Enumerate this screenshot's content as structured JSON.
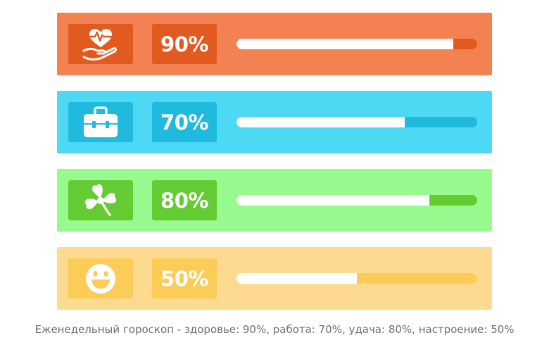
{
  "colors": {
    "health_bg": "#f48152",
    "health_accent": "#e25a20",
    "work_bg": "#4dd8f4",
    "work_accent": "#1fbade",
    "luck_bg": "#96fa8e",
    "luck_accent": "#64cc32",
    "mood_bg": "#feda90",
    "mood_accent": "#fbcc58",
    "bar_fill": "#ffffff",
    "caption_text": "#6f6f6f"
  },
  "cards": [
    {
      "key": "health",
      "icon": "heart-hand-icon",
      "percent_label": "90%",
      "value": 90
    },
    {
      "key": "work",
      "icon": "briefcase-icon",
      "percent_label": "70%",
      "value": 70
    },
    {
      "key": "luck",
      "icon": "clover-icon",
      "percent_label": "80%",
      "value": 80
    },
    {
      "key": "mood",
      "icon": "smiley-icon",
      "percent_label": "50%",
      "value": 50
    }
  ],
  "caption": "Еженедельный гороскоп - здоровье: 90%, работа: 70%, удача: 80%, настроение: 50%"
}
